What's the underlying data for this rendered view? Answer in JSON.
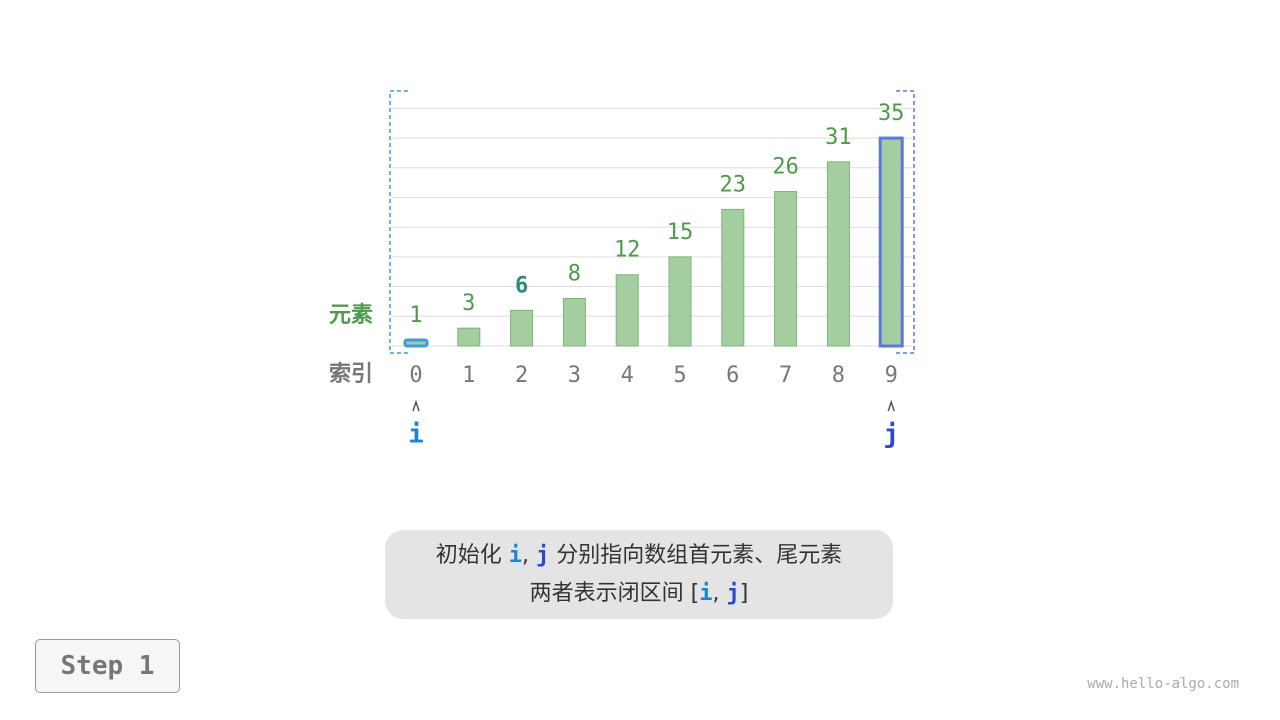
{
  "labels": {
    "elements": "元素",
    "indices": "索引",
    "pointer_i": "i",
    "pointer_j": "j"
  },
  "chart_data": {
    "type": "bar",
    "categories": [
      "0",
      "1",
      "2",
      "3",
      "4",
      "5",
      "6",
      "7",
      "8",
      "9"
    ],
    "values": [
      1,
      3,
      6,
      8,
      12,
      15,
      23,
      26,
      31,
      35
    ],
    "ylim": [
      0,
      40
    ],
    "grid": true,
    "highlight": {
      "i": 0,
      "j": 9,
      "target_value": 6
    }
  },
  "colors": {
    "bar": "#a5cea0",
    "bar_edge": "#7fb37a",
    "value_text": "#4e9a4a",
    "target_text": "#2d8a7d",
    "index_text": "#777777",
    "i": "#1a86d0",
    "j": "#2c47d4",
    "i_bracket": "#3a9ee0",
    "j_bracket": "#5a78e0",
    "grid": "#dddddd"
  },
  "caption": {
    "line1_pre": "初始化 ",
    "i": "i",
    "comma": ", ",
    "j": "j",
    "line1_post": " 分别指向数组首元素、尾元素",
    "line2_pre": "两者表示闭区间 [",
    "line2_post": "]"
  },
  "step": "Step 1",
  "watermark": "www.hello-algo.com"
}
